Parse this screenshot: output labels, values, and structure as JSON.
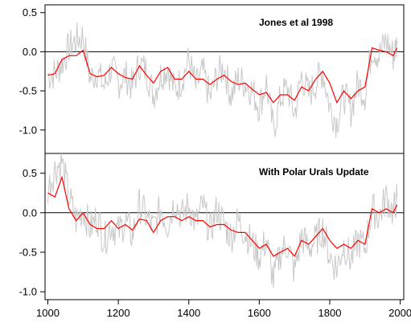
{
  "chart_data": [
    {
      "type": "line",
      "title": "Jones et al 1998",
      "xlabel": "",
      "ylabel": "",
      "xlim": [
        1000,
        1991
      ],
      "ylim": [
        -1.3,
        0.6
      ],
      "xticks": [
        1000,
        1200,
        1400,
        1600,
        1800,
        2000
      ],
      "yticks": [
        0.5,
        0.0,
        -0.5,
        -1.0
      ],
      "ytick_labels": [
        "0.5",
        "0.0",
        "-0.5",
        "-1.0"
      ],
      "zero_line": true,
      "grid": false,
      "series": [
        {
          "color": "#c8c8c8",
          "style": "annual",
          "x": [
            1000,
            1020,
            1040,
            1060,
            1080,
            1100,
            1120,
            1140,
            1160,
            1180,
            1200,
            1220,
            1240,
            1260,
            1280,
            1300,
            1320,
            1340,
            1360,
            1380,
            1400,
            1420,
            1440,
            1460,
            1480,
            1500,
            1520,
            1540,
            1560,
            1580,
            1600,
            1620,
            1640,
            1660,
            1680,
            1700,
            1720,
            1740,
            1760,
            1780,
            1800,
            1820,
            1840,
            1860,
            1880,
            1900,
            1920,
            1940,
            1960,
            1980,
            1991
          ],
          "y": [
            -0.3,
            -0.28,
            -0.15,
            0.05,
            0.15,
            0.2,
            -0.35,
            -0.25,
            -0.45,
            -0.2,
            -0.4,
            -0.3,
            -0.45,
            -0.15,
            -0.25,
            -0.55,
            -0.3,
            -0.2,
            -0.5,
            -0.35,
            -0.1,
            -0.45,
            -0.25,
            -0.6,
            -0.3,
            -0.2,
            -0.55,
            -0.35,
            -0.4,
            -0.5,
            -0.7,
            -0.4,
            -1.0,
            -0.6,
            -0.45,
            -0.8,
            -0.3,
            -0.55,
            -0.4,
            -0.25,
            -0.7,
            -0.9,
            -0.55,
            -0.75,
            -0.4,
            -0.55,
            0.05,
            -0.05,
            0.15,
            -0.05,
            0.1
          ]
        },
        {
          "color": "#ff0000",
          "style": "smoothed",
          "x": [
            1000,
            1020,
            1040,
            1060,
            1080,
            1100,
            1120,
            1140,
            1160,
            1180,
            1200,
            1220,
            1240,
            1260,
            1280,
            1300,
            1320,
            1340,
            1360,
            1380,
            1400,
            1420,
            1440,
            1460,
            1480,
            1500,
            1520,
            1540,
            1560,
            1580,
            1600,
            1620,
            1640,
            1660,
            1680,
            1700,
            1720,
            1740,
            1760,
            1780,
            1800,
            1820,
            1840,
            1860,
            1880,
            1900,
            1920,
            1940,
            1960,
            1980,
            1991
          ],
          "y": [
            -0.3,
            -0.28,
            -0.1,
            -0.05,
            -0.05,
            0.02,
            -0.28,
            -0.32,
            -0.3,
            -0.2,
            -0.28,
            -0.33,
            -0.35,
            -0.18,
            -0.3,
            -0.4,
            -0.25,
            -0.2,
            -0.35,
            -0.35,
            -0.25,
            -0.35,
            -0.35,
            -0.42,
            -0.35,
            -0.3,
            -0.38,
            -0.42,
            -0.4,
            -0.48,
            -0.55,
            -0.52,
            -0.65,
            -0.55,
            -0.55,
            -0.62,
            -0.45,
            -0.5,
            -0.35,
            -0.25,
            -0.4,
            -0.65,
            -0.5,
            -0.6,
            -0.5,
            -0.45,
            0.05,
            0.02,
            0.0,
            -0.05,
            0.05
          ]
        }
      ]
    },
    {
      "type": "line",
      "title": "With Polar Urals Update",
      "xlabel": "",
      "ylabel": "",
      "xlim": [
        1000,
        1991
      ],
      "ylim": [
        -1.1,
        0.75
      ],
      "xticks": [
        1000,
        1200,
        1400,
        1600,
        1800,
        2000
      ],
      "xtick_labels": [
        "1000",
        "1200",
        "1400",
        "1600",
        "1800",
        "2000"
      ],
      "yticks": [
        0.5,
        0.0,
        -0.5,
        -1.0
      ],
      "ytick_labels": [
        "0.5",
        "0.0",
        "-0.5",
        "-1.0"
      ],
      "zero_line": true,
      "grid": false,
      "series": [
        {
          "color": "#c8c8c8",
          "style": "annual",
          "x": [
            1000,
            1020,
            1040,
            1060,
            1080,
            1100,
            1120,
            1140,
            1160,
            1180,
            1200,
            1220,
            1240,
            1260,
            1280,
            1300,
            1320,
            1340,
            1360,
            1380,
            1400,
            1420,
            1440,
            1460,
            1480,
            1500,
            1520,
            1540,
            1560,
            1580,
            1600,
            1620,
            1640,
            1660,
            1680,
            1700,
            1720,
            1740,
            1760,
            1780,
            1800,
            1820,
            1840,
            1860,
            1880,
            1900,
            1920,
            1940,
            1960,
            1980,
            1991
          ],
          "y": [
            0.3,
            0.55,
            0.65,
            0.2,
            -0.1,
            0.05,
            -0.2,
            -0.05,
            -0.35,
            -0.15,
            -0.25,
            -0.1,
            -0.3,
            0.1,
            -0.05,
            -0.2,
            0.05,
            -0.15,
            0.15,
            -0.05,
            0.1,
            -0.15,
            0.1,
            -0.25,
            0.05,
            -0.15,
            -0.3,
            -0.1,
            -0.25,
            -0.4,
            -0.55,
            -0.35,
            -0.85,
            -0.5,
            -0.4,
            -0.75,
            -0.3,
            -0.45,
            -0.35,
            -0.2,
            -0.55,
            -0.7,
            -0.4,
            -0.6,
            -0.35,
            -0.45,
            0.05,
            -0.05,
            0.2,
            0.0,
            0.2
          ]
        },
        {
          "color": "#ff0000",
          "style": "smoothed",
          "x": [
            1000,
            1020,
            1040,
            1060,
            1080,
            1100,
            1120,
            1140,
            1160,
            1180,
            1200,
            1220,
            1240,
            1260,
            1280,
            1300,
            1320,
            1340,
            1360,
            1380,
            1400,
            1420,
            1440,
            1460,
            1480,
            1500,
            1520,
            1540,
            1560,
            1580,
            1600,
            1620,
            1640,
            1660,
            1680,
            1700,
            1720,
            1740,
            1760,
            1780,
            1800,
            1820,
            1840,
            1860,
            1880,
            1900,
            1920,
            1940,
            1960,
            1980,
            1991
          ],
          "y": [
            0.25,
            0.2,
            0.45,
            0.05,
            -0.1,
            0.0,
            -0.15,
            -0.2,
            -0.2,
            -0.1,
            -0.2,
            -0.15,
            -0.22,
            -0.08,
            -0.1,
            -0.25,
            -0.1,
            -0.05,
            -0.05,
            -0.1,
            -0.05,
            -0.1,
            -0.1,
            -0.18,
            -0.15,
            -0.15,
            -0.22,
            -0.25,
            -0.25,
            -0.35,
            -0.45,
            -0.4,
            -0.55,
            -0.5,
            -0.45,
            -0.55,
            -0.35,
            -0.4,
            -0.3,
            -0.2,
            -0.35,
            -0.45,
            -0.4,
            -0.45,
            -0.35,
            -0.4,
            0.05,
            0.0,
            0.05,
            0.0,
            0.1
          ]
        }
      ]
    }
  ]
}
